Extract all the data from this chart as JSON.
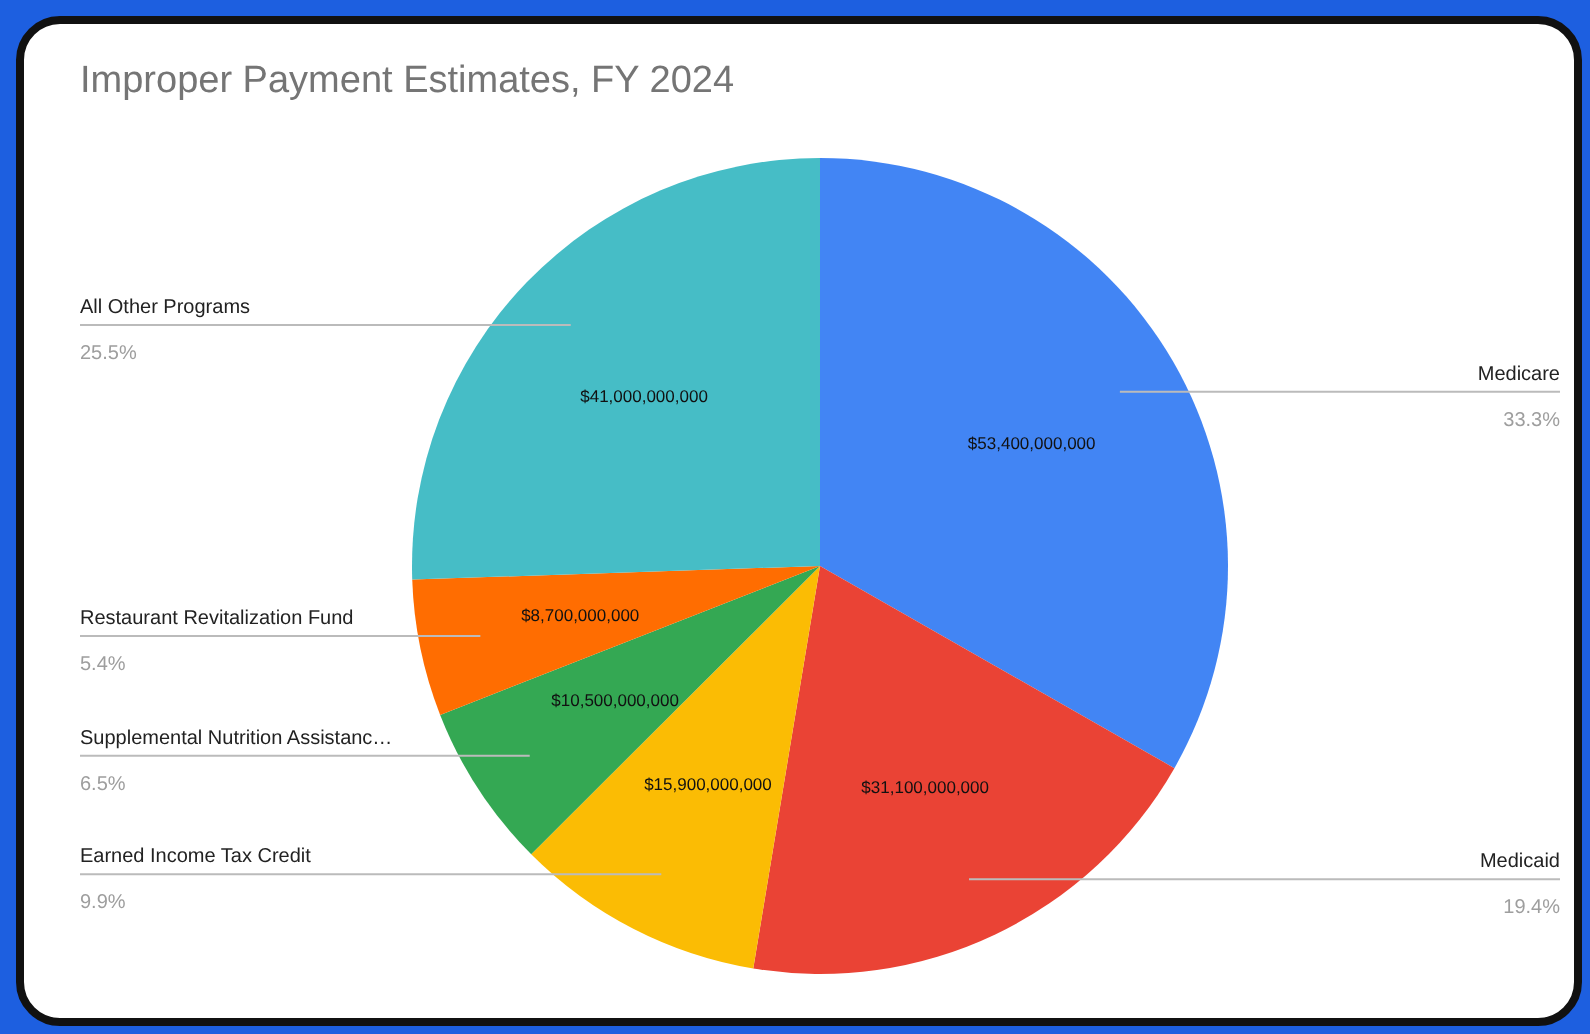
{
  "chart_data": {
    "type": "pie",
    "title": "Improper Payment Estimates, FY 2024",
    "categories": [
      "Medicare",
      "Medicaid",
      "Earned Income Tax Credit",
      "Supplemental Nutrition Assistanc…",
      "Restaurant Revitalization Fund",
      "All Other Programs"
    ],
    "values": [
      53400000000,
      31100000000,
      15900000000,
      10500000000,
      8700000000,
      41000000000
    ],
    "colors": [
      "#4285f4",
      "#ea4335",
      "#fbbc04",
      "#34a853",
      "#ff6d01",
      "#46bdc6"
    ],
    "value_labels": [
      "$53,400,000,000",
      "$31,100,000,000",
      "$15,900,000,000",
      "$10,500,000,000",
      "$8,700,000,000",
      "$41,000,000,000"
    ],
    "annotations": [
      "33.3%",
      "19.4%",
      "9.9%",
      "6.5%",
      "5.4%",
      "25.5%"
    ]
  }
}
